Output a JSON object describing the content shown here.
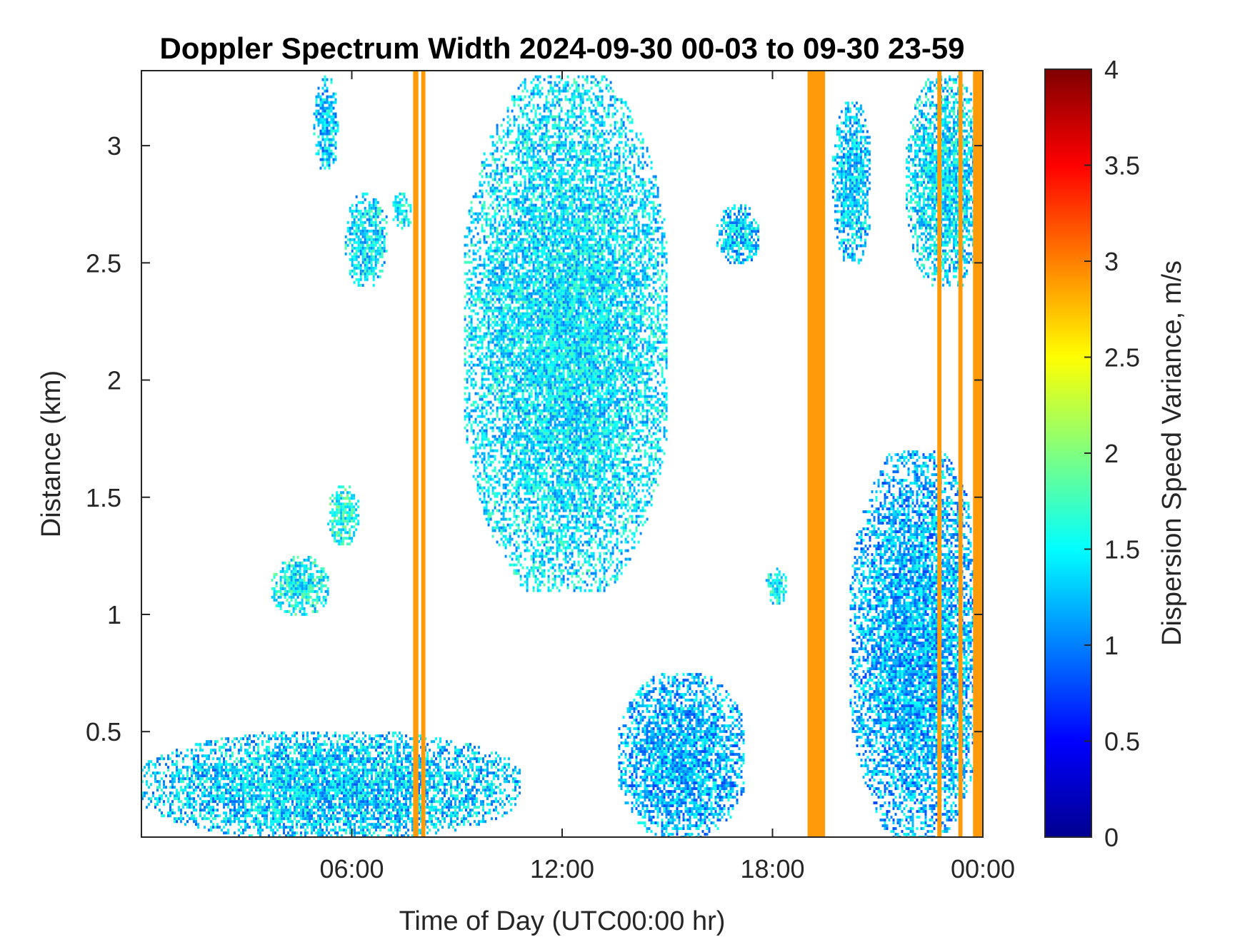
{
  "chart_data": {
    "type": "heatmap",
    "title": "Doppler Spectrum Width 2024-09-30 00-03 to 09-30 23-59",
    "xlabel": "Time of Day (UTC00:00 hr)",
    "ylabel": "Distance (km)",
    "x_ticks": [
      {
        "value": 6,
        "label": "06:00"
      },
      {
        "value": 12,
        "label": "12:00"
      },
      {
        "value": 18,
        "label": "18:00"
      },
      {
        "value": 24,
        "label": "00:00"
      }
    ],
    "y_ticks": [
      {
        "value": 0.5,
        "label": "0.5"
      },
      {
        "value": 1,
        "label": "1"
      },
      {
        "value": 1.5,
        "label": "1.5"
      },
      {
        "value": 2,
        "label": "2"
      },
      {
        "value": 2.5,
        "label": "2.5"
      },
      {
        "value": 3,
        "label": "3"
      }
    ],
    "xlim": [
      0,
      24
    ],
    "ylim": [
      0.05,
      3.32
    ],
    "colorbar": {
      "label": "Dispersion Speed Variance, m/s",
      "min": 0,
      "max": 4,
      "colormap": "jet",
      "ticks": [
        "0",
        "0.5",
        "1",
        "1.5",
        "2",
        "2.5",
        "3",
        "3.5",
        "4"
      ]
    },
    "regions": [
      {
        "name": "boundary-layer-morning",
        "t0": 0.0,
        "t1": 10.8,
        "z0": 0.05,
        "z1": 0.5,
        "value": 1.3
      },
      {
        "name": "boundary-layer-afternoon",
        "t0": 13.6,
        "t1": 17.2,
        "z0": 0.05,
        "z1": 0.75,
        "value": 1.2
      },
      {
        "name": "cloud-midday",
        "t0": 9.2,
        "t1": 15.0,
        "z0": 1.1,
        "z1": 3.3,
        "value": 1.4
      },
      {
        "name": "cloud-evening-low",
        "t0": 20.2,
        "t1": 24.0,
        "z0": 0.05,
        "z1": 1.7,
        "value": 1.2
      },
      {
        "name": "cloud-evening-high",
        "t0": 21.8,
        "t1": 24.0,
        "z0": 2.4,
        "z1": 3.3,
        "value": 1.4
      },
      {
        "name": "patch-06h",
        "t0": 5.8,
        "t1": 7.0,
        "z0": 2.4,
        "z1": 2.8,
        "value": 1.4
      },
      {
        "name": "patch-05h",
        "t0": 4.9,
        "t1": 5.6,
        "z0": 2.9,
        "z1": 3.3,
        "value": 1.3
      },
      {
        "name": "patch-07h",
        "t0": 7.1,
        "t1": 7.7,
        "z0": 2.65,
        "z1": 2.8,
        "value": 1.5
      },
      {
        "name": "patch-04h",
        "t0": 3.7,
        "t1": 5.3,
        "z0": 1.0,
        "z1": 1.25,
        "value": 1.5
      },
      {
        "name": "patch-05h-mid",
        "t0": 5.3,
        "t1": 6.2,
        "z0": 1.3,
        "z1": 1.55,
        "value": 1.6
      },
      {
        "name": "patch-17h",
        "t0": 17.8,
        "t1": 18.4,
        "z0": 1.05,
        "z1": 1.2,
        "value": 1.5
      },
      {
        "name": "patch-20h",
        "t0": 19.7,
        "t1": 20.8,
        "z0": 2.5,
        "z1": 3.2,
        "value": 1.3
      },
      {
        "name": "patch-17h-high",
        "t0": 16.4,
        "t1": 17.6,
        "z0": 2.5,
        "z1": 2.75,
        "value": 1.3
      }
    ],
    "invalid_bands": [
      {
        "t0": 7.75,
        "t1": 7.9,
        "value": 3.0
      },
      {
        "t0": 7.98,
        "t1": 8.1,
        "value": 3.0
      },
      {
        "t0": 19.0,
        "t1": 19.5,
        "value": 3.0
      },
      {
        "t0": 22.7,
        "t1": 22.82,
        "value": 3.0
      },
      {
        "t0": 23.3,
        "t1": 23.42,
        "value": 3.0
      },
      {
        "t0": 23.72,
        "t1": 24.0,
        "value": 3.0
      }
    ]
  }
}
